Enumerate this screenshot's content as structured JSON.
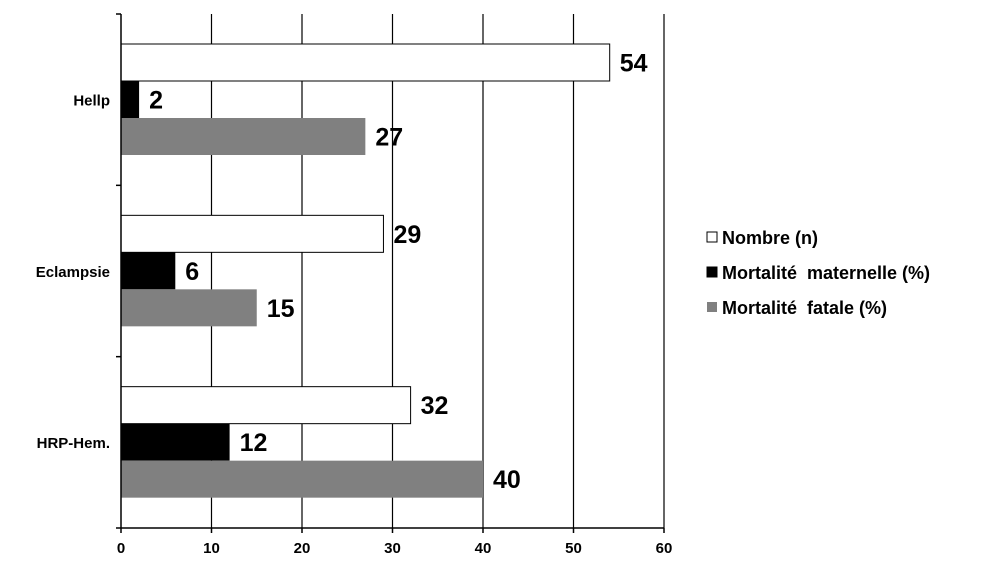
{
  "chart_data": {
    "type": "bar",
    "orientation": "horizontal",
    "title": "",
    "xlabel": "",
    "ylabel": "",
    "categories": [
      "Hellp",
      "Eclampsie",
      "HRP-Hem."
    ],
    "series": [
      {
        "name": "Nombre (n)",
        "values": [
          54,
          29,
          32
        ],
        "color": "#ffffff"
      },
      {
        "name": "Mortalité  maternelle (%)",
        "values": [
          2,
          6,
          12
        ],
        "color": "#000000"
      },
      {
        "name": "Mortalité  fatale (%)",
        "values": [
          27,
          15,
          40
        ],
        "color": "#808080"
      }
    ],
    "xlim": [
      0,
      60
    ],
    "xticks": [
      0,
      10,
      20,
      30,
      40,
      50,
      60
    ],
    "grid": "vertical",
    "legend": "right"
  }
}
